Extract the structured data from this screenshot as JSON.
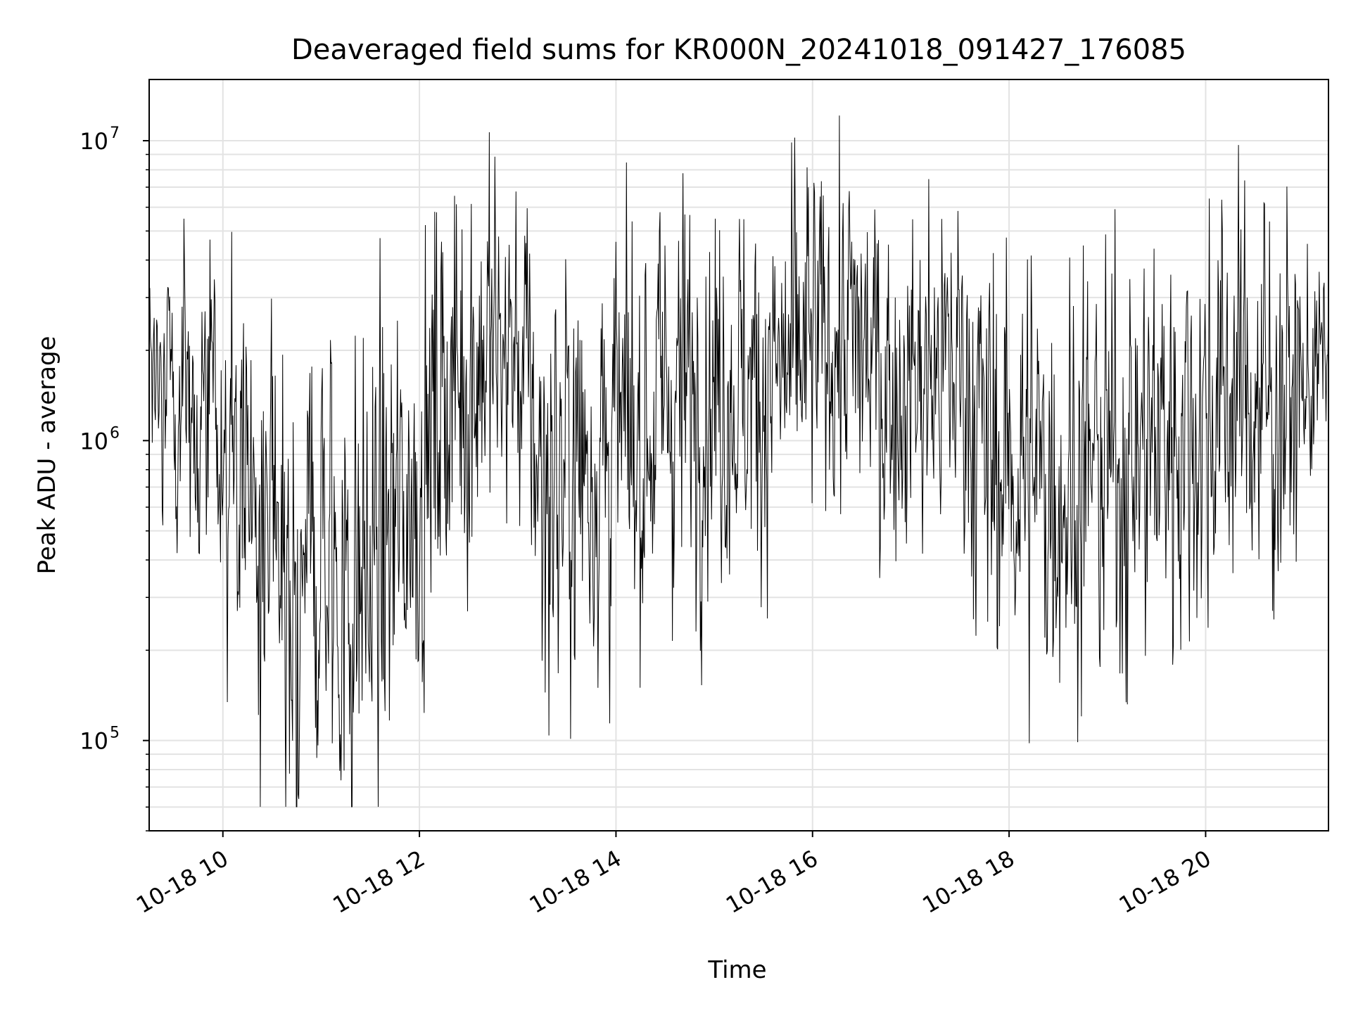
{
  "chart_data": {
    "type": "line",
    "title": "Deaveraged field sums for KR000N_20241018_091427_176085",
    "xlabel": "Time",
    "ylabel": "Peak ADU - average",
    "yscale": "log",
    "ylim": [
      50000,
      16000000
    ],
    "xlim_hours": [
      9.25,
      21.25
    ],
    "grid": true,
    "legend": "none",
    "line_color": "#000000",
    "x_ticks": [
      {
        "hour": 10,
        "label": "10-18 10"
      },
      {
        "hour": 12,
        "label": "10-18 12"
      },
      {
        "hour": 14,
        "label": "10-18 14"
      },
      {
        "hour": 16,
        "label": "10-18 16"
      },
      {
        "hour": 18,
        "label": "10-18 18"
      },
      {
        "hour": 20,
        "label": "10-18 20"
      }
    ],
    "y_ticks": [
      {
        "value": 100000,
        "base": "10",
        "exp": "5"
      },
      {
        "value": 1000000,
        "base": "10",
        "exp": "6"
      },
      {
        "value": 10000000,
        "base": "10",
        "exp": "7"
      }
    ],
    "series": [
      {
        "x_hours": [
          9.25,
          9.5,
          9.75,
          10.0,
          10.25,
          10.5,
          10.75,
          11.0,
          11.25,
          11.5,
          11.75,
          12.0,
          12.25,
          12.5,
          12.55,
          12.75,
          13.0,
          13.25,
          13.5,
          13.75,
          14.0,
          14.25,
          14.5,
          14.75,
          15.0,
          15.25,
          15.5,
          15.75,
          16.0,
          16.25,
          16.5,
          16.75,
          17.0,
          17.25,
          17.5,
          17.75,
          18.0,
          18.25,
          18.5,
          18.75,
          19.0,
          19.25,
          19.5,
          19.75,
          20.0,
          20.25,
          20.5,
          20.75,
          21.0,
          21.25
        ],
        "y_median": [
          1700000,
          1500000,
          1200000,
          950000,
          750000,
          350000,
          300000,
          450000,
          300000,
          350000,
          500000,
          700000,
          1500000,
          1700000,
          2000000,
          2000000,
          2000000,
          700000,
          800000,
          900000,
          1000000,
          1000000,
          1400000,
          1500000,
          1500000,
          1500000,
          1500000,
          1700000,
          2000000,
          2200000,
          2000000,
          1500000,
          1600000,
          1600000,
          1800000,
          900000,
          800000,
          800000,
          700000,
          800000,
          800000,
          900000,
          1000000,
          1100000,
          1200000,
          1500000,
          1400000,
          1300000,
          1500000,
          2000000
        ],
        "y_spread": [
          0.25,
          0.3,
          0.35,
          0.4,
          0.45,
          0.5,
          0.55,
          0.55,
          0.55,
          0.55,
          0.5,
          0.45,
          0.45,
          0.45,
          0.45,
          0.4,
          0.35,
          0.5,
          0.5,
          0.5,
          0.45,
          0.45,
          0.45,
          0.45,
          0.4,
          0.4,
          0.4,
          0.4,
          0.4,
          0.4,
          0.4,
          0.4,
          0.4,
          0.4,
          0.4,
          0.45,
          0.45,
          0.45,
          0.45,
          0.45,
          0.45,
          0.45,
          0.45,
          0.45,
          0.45,
          0.45,
          0.45,
          0.45,
          0.3,
          0.15
        ]
      }
    ]
  }
}
